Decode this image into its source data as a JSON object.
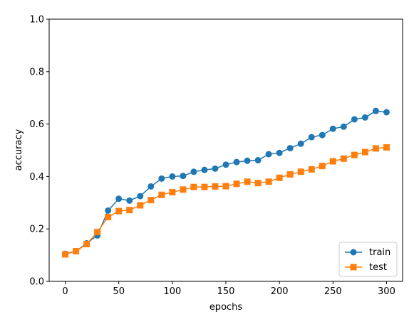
{
  "chart_data": {
    "type": "line",
    "xlabel": "epochs",
    "ylabel": "accuracy",
    "xlim": [
      -15,
      315
    ],
    "ylim": [
      0,
      1.0
    ],
    "x_ticks": [
      0,
      50,
      100,
      150,
      200,
      250,
      300
    ],
    "y_ticks": [
      0.0,
      0.2,
      0.4,
      0.6,
      0.8,
      1.0
    ],
    "x_tick_labels": [
      "0",
      "50",
      "100",
      "150",
      "200",
      "250",
      "300"
    ],
    "y_tick_labels": [
      "0.0",
      "0.2",
      "0.4",
      "0.6",
      "0.8",
      "1.0"
    ],
    "grid": false,
    "legend_position": "lower-right",
    "x": [
      0,
      10,
      20,
      30,
      40,
      50,
      60,
      70,
      80,
      90,
      100,
      110,
      120,
      130,
      140,
      150,
      160,
      170,
      180,
      190,
      200,
      210,
      220,
      230,
      240,
      250,
      260,
      270,
      280,
      290,
      300
    ],
    "series": [
      {
        "name": "train",
        "color": "#1f77b4",
        "marker": "circle",
        "values": [
          0.105,
          0.115,
          0.145,
          0.175,
          0.27,
          0.315,
          0.308,
          0.325,
          0.362,
          0.392,
          0.4,
          0.402,
          0.418,
          0.425,
          0.43,
          0.445,
          0.455,
          0.46,
          0.462,
          0.485,
          0.49,
          0.508,
          0.525,
          0.55,
          0.558,
          0.582,
          0.59,
          0.618,
          0.625,
          0.65,
          0.645
        ]
      },
      {
        "name": "test",
        "color": "#ff7f0e",
        "marker": "square",
        "values": [
          0.103,
          0.115,
          0.142,
          0.188,
          0.245,
          0.268,
          0.272,
          0.29,
          0.31,
          0.33,
          0.34,
          0.35,
          0.36,
          0.36,
          0.362,
          0.363,
          0.372,
          0.38,
          0.375,
          0.38,
          0.395,
          0.408,
          0.418,
          0.427,
          0.44,
          0.458,
          0.468,
          0.482,
          0.493,
          0.507,
          0.511
        ]
      }
    ]
  }
}
